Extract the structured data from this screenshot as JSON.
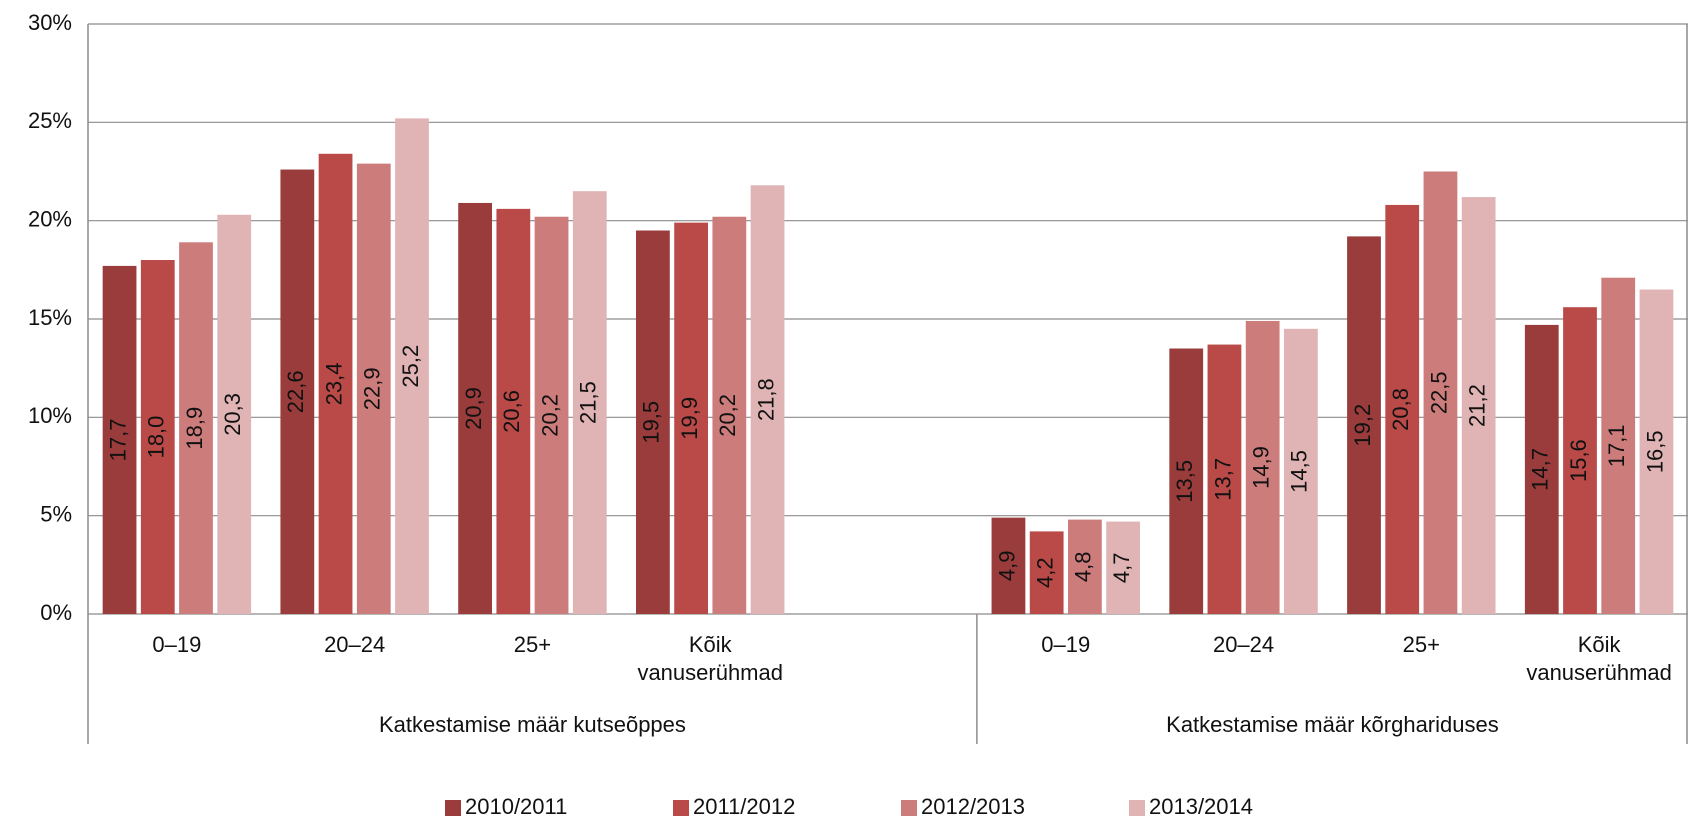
{
  "chart_data": {
    "type": "bar",
    "categories": [
      "0–19",
      "20–24",
      "25+",
      "Kõik vanuserühmad",
      null,
      "0–19",
      "20–24",
      "25+",
      "Kõik vanuserühmad"
    ],
    "groups": [
      "Katkestamise määr kutseõppes",
      "Katkestamise määr kutseõppes",
      "Katkestamise määr kutseõppes",
      "Katkestamise määr kutseõppes",
      "Katkestamise määr kutseõppes",
      "Katkestamise määr kõrghariduses",
      "Katkestamise määr kõrghariduses",
      "Katkestamise määr kõrghariduses",
      "Katkestamise määr kõrghariduses"
    ],
    "series": [
      {
        "name": "2010/2011",
        "color": "#9a3c3c",
        "values": [
          17.7,
          22.6,
          20.9,
          19.5,
          null,
          4.9,
          13.5,
          19.2,
          14.7
        ],
        "value_labels": [
          "17,7",
          "22,6",
          "20,9",
          "19,5",
          null,
          "4,9",
          "13,5",
          "19,2",
          "14,7"
        ]
      },
      {
        "name": "2011/2012",
        "color": "#b94a48",
        "values": [
          18.0,
          23.4,
          20.6,
          19.9,
          null,
          4.2,
          13.7,
          20.8,
          15.6
        ],
        "value_labels": [
          "18,0",
          "23,4",
          "20,6",
          "19,9",
          null,
          "4,2",
          "13,7",
          "20,8",
          "15,6"
        ]
      },
      {
        "name": "2012/2013",
        "color": "#cd7c7c",
        "values": [
          18.9,
          22.9,
          20.2,
          20.2,
          null,
          4.8,
          14.9,
          22.5,
          17.1
        ],
        "value_labels": [
          "18,9",
          "22,9",
          "20,2",
          "20,2",
          null,
          "4,8",
          "14,9",
          "22,5",
          "17,1"
        ]
      },
      {
        "name": "2013/2014",
        "color": "#e0b4b4",
        "values": [
          20.3,
          25.2,
          21.5,
          21.8,
          null,
          4.7,
          14.5,
          21.2,
          16.5
        ],
        "value_labels": [
          "20,3",
          "25,2",
          "21,5",
          "21,8",
          null,
          "4,7",
          "14,5",
          "21,2",
          "16,5"
        ]
      }
    ],
    "ylim": [
      0,
      30
    ],
    "yticks": [
      {
        "value": 0,
        "label": "0%"
      },
      {
        "value": 5,
        "label": "5%"
      },
      {
        "value": 10,
        "label": "10%"
      },
      {
        "value": 15,
        "label": "15%"
      },
      {
        "value": 20,
        "label": "20%"
      },
      {
        "value": 25,
        "label": "25%"
      },
      {
        "value": 30,
        "label": "30%"
      }
    ],
    "grid": true,
    "legend": "bottom"
  }
}
